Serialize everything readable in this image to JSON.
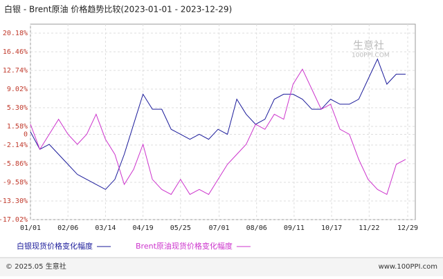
{
  "chart_data": {
    "type": "line",
    "title": "白银 - Brent原油 价格趋势比较(2023-01-01 - 2023-12-29)",
    "watermark": "生意社",
    "watermark_sub": "100PPI.COM",
    "footer_left": "© 2025.05 生意社",
    "footer_right": "www.100PPI.com",
    "x": [
      0,
      9,
      18,
      27,
      36,
      45,
      54,
      63,
      72,
      81,
      90,
      99,
      108,
      117,
      126,
      135,
      144,
      153,
      162,
      171,
      180,
      189,
      198,
      207,
      216,
      225,
      234,
      243,
      252,
      261,
      270,
      279,
      288,
      297,
      306,
      315,
      324,
      333,
      342,
      351,
      360
    ],
    "xlim": [
      0,
      362
    ],
    "xticks": [
      {
        "value": 0,
        "label": "01/01"
      },
      {
        "value": 36,
        "label": "02/06"
      },
      {
        "value": 72,
        "label": "03/14"
      },
      {
        "value": 108,
        "label": "04/19"
      },
      {
        "value": 144,
        "label": "05/25"
      },
      {
        "value": 181,
        "label": "07/01"
      },
      {
        "value": 217,
        "label": "08/06"
      },
      {
        "value": 253,
        "label": "09/11"
      },
      {
        "value": 289,
        "label": "10/17"
      },
      {
        "value": 325,
        "label": "11/22"
      },
      {
        "value": 362,
        "label": "12/29"
      }
    ],
    "ylim": [
      -17.02,
      20.18
    ],
    "yticks": [
      {
        "value": 20.18,
        "label": "20.18%"
      },
      {
        "value": 16.46,
        "label": "16.46%"
      },
      {
        "value": 12.74,
        "label": "12.74%"
      },
      {
        "value": 9.02,
        "label": "9.02%"
      },
      {
        "value": 5.3,
        "label": "5.30%"
      },
      {
        "value": 1.58,
        "label": "1.58%"
      },
      0,
      {
        "value": -2.14,
        "label": "-2.14%"
      },
      {
        "value": -5.86,
        "label": "-5.86%"
      },
      {
        "value": -9.58,
        "label": "-9.58%"
      },
      {
        "value": -13.3,
        "label": "-13.30%"
      },
      {
        "value": -17.02,
        "label": "-17.02%"
      }
    ],
    "grid": true,
    "series": [
      {
        "name": "白银现货价格变化幅度",
        "color": "#1a1a9a",
        "values": [
          0.5,
          -3,
          -2,
          -4,
          -6,
          -8,
          -9,
          -10,
          -11,
          -9,
          -4,
          2,
          8,
          5,
          5,
          1,
          0,
          -1,
          0,
          -1,
          1,
          0,
          7,
          4,
          2,
          3,
          7,
          8,
          8,
          7,
          5,
          5,
          7,
          6,
          6,
          7,
          11,
          15,
          10,
          12,
          12
        ]
      },
      {
        "name": "Brent原油现货价格变化幅度",
        "color": "#cc33cc",
        "values": [
          2,
          -3,
          0,
          3,
          0,
          -2,
          0,
          4,
          -1,
          -4,
          -10,
          -7,
          -2,
          -9,
          -11,
          -12,
          -9,
          -12,
          -11,
          -12,
          -9,
          -6,
          -4,
          -2,
          2,
          1,
          4,
          3,
          10,
          13,
          9,
          5,
          6,
          1,
          0,
          -5,
          -9,
          -11,
          -12,
          -6,
          -5
        ]
      }
    ]
  }
}
